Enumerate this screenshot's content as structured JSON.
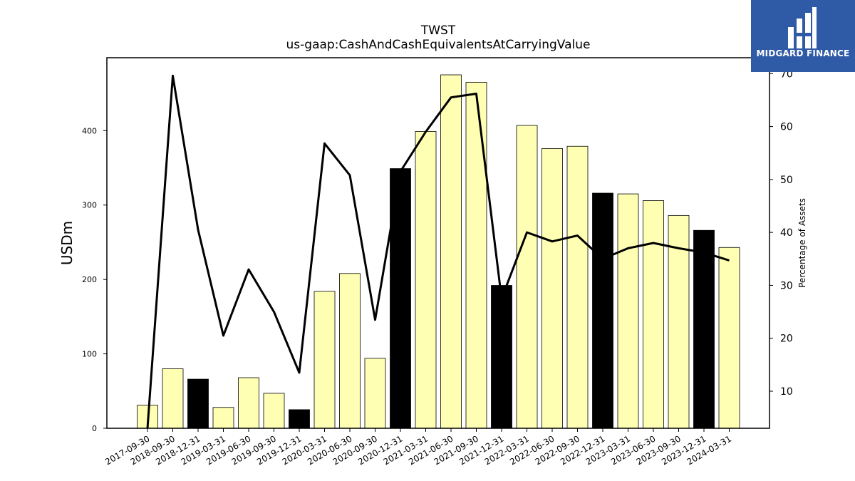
{
  "chart_data": {
    "type": "bar",
    "title": "TWST",
    "subtitle": "us-gaap:CashAndCashEquivalentsAtCarryingValue",
    "ylabel": "USDm",
    "y2label": "Percentage of Assets",
    "ylim": [
      0,
      498
    ],
    "y2lim": [
      3,
      73
    ],
    "yticks": [
      0,
      100,
      200,
      300,
      400
    ],
    "y2ticks": [
      10,
      20,
      30,
      40,
      50,
      60,
      70
    ],
    "categories": [
      "2017-09-30",
      "2018-09-30",
      "2018-12-31",
      "2019-03-31",
      "2019-06-30",
      "2019-09-30",
      "2019-12-31",
      "2020-03-31",
      "2020-06-30",
      "2020-09-30",
      "2020-12-31",
      "2021-03-31",
      "2021-06-30",
      "2021-09-30",
      "2021-12-31",
      "2022-03-31",
      "2022-06-30",
      "2022-09-30",
      "2022-12-31",
      "2023-03-31",
      "2023-06-30",
      "2023-09-30",
      "2023-12-31",
      "2024-03-31"
    ],
    "series": [
      {
        "values": [
          31,
          80,
          66,
          28,
          68,
          47,
          25,
          184,
          208,
          94,
          349,
          399,
          475,
          465,
          192,
          407,
          376,
          379,
          316,
          315,
          306,
          286,
          266,
          243
        ],
        "colors": [
          "#ffffb3",
          "#ffffb3",
          "#000000",
          "#ffffb3",
          "#ffffb3",
          "#ffffb3",
          "#000000",
          "#ffffb3",
          "#ffffb3",
          "#ffffb3",
          "#000000",
          "#ffffb3",
          "#ffffb3",
          "#ffffb3",
          "#000000",
          "#ffffb3",
          "#ffffb3",
          "#ffffb3",
          "#000000",
          "#ffffb3",
          "#ffffb3",
          "#ffffb3",
          "#000000",
          "#ffffb3"
        ]
      },
      {
        "type": "line",
        "axis": "right",
        "values": [
          3.0,
          69.6,
          40.5,
          20.5,
          33.0,
          25.0,
          13.5,
          56.8,
          50.8,
          23.5,
          51.5,
          59.0,
          65.5,
          66.2,
          27.5,
          40.0,
          38.3,
          39.4,
          35.0,
          37.0,
          38.0,
          37.0,
          36.2,
          34.7
        ],
        "color": "#000000"
      }
    ],
    "grid": false,
    "legend": "none"
  },
  "logo": {
    "text": "MIDGARD FINANCE"
  }
}
